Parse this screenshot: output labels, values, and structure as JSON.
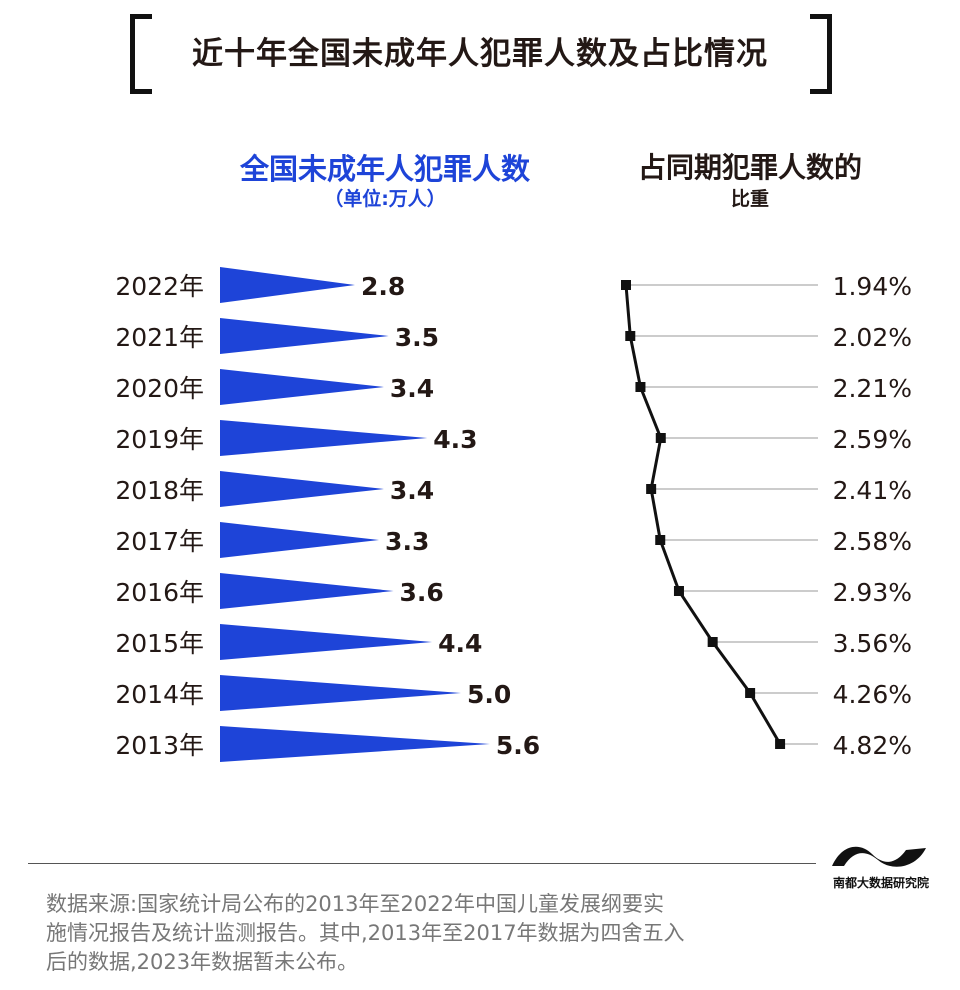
{
  "title": "近十年全国未成年人犯罪人数及占比情况",
  "left_title": "全国未成年人犯罪人数",
  "left_unit": "（单位:万人）",
  "right_title": "占同期犯罪人数的",
  "right_subtitle": "比重",
  "chart_data": [
    {
      "type": "bar",
      "title": "全国未成年人犯罪人数",
      "unit": "（单位:万人）",
      "categories": [
        "2022年",
        "2021年",
        "2020年",
        "2019年",
        "2018年",
        "2017年",
        "2016年",
        "2015年",
        "2014年",
        "2013年"
      ],
      "values": [
        2.8,
        3.5,
        3.4,
        4.3,
        3.4,
        3.3,
        3.6,
        4.4,
        5.0,
        5.6
      ],
      "value_labels": [
        "2.8",
        "3.5",
        "3.4",
        "4.3",
        "3.4",
        "3.3",
        "3.6",
        "4.4",
        "5.0",
        "5.6"
      ],
      "color": "#1e44d8",
      "orientation": "horizontal",
      "bar_shape": "triangle"
    },
    {
      "type": "line",
      "title": "占同期犯罪人数的比重",
      "categories": [
        "2022年",
        "2021年",
        "2020年",
        "2019年",
        "2018年",
        "2017年",
        "2016年",
        "2015年",
        "2014年",
        "2013年"
      ],
      "values": [
        1.94,
        2.02,
        2.21,
        2.59,
        2.41,
        2.58,
        2.93,
        3.56,
        4.26,
        4.82
      ],
      "value_labels": [
        "1.94%",
        "2.02%",
        "2.21%",
        "2.59%",
        "2.41%",
        "2.58%",
        "2.93%",
        "3.56%",
        "4.26%",
        "4.82%"
      ],
      "unit": "%",
      "color": "#111111",
      "marker": "square",
      "orientation": "vertical"
    }
  ],
  "logo_text": "南都大数据研究院",
  "source_lines": [
    "数据来源:国家统计局公布的2013年至2022年中国儿童发展纲要实",
    "施情况报告及统计监测报告。其中,2013年至2017年数据为四舍五入",
    "后的数据,2023年数据暂未公布。"
  ]
}
